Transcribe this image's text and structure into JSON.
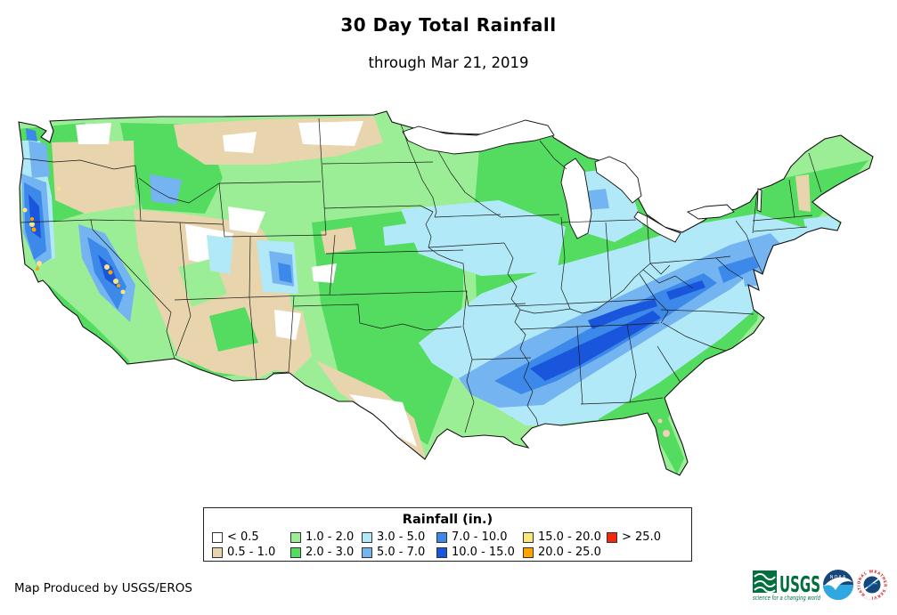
{
  "header": {
    "title": "30 Day Total Rainfall",
    "subtitle": "through Mar 21, 2019"
  },
  "legend": {
    "title": "Rainfall (in.)",
    "items": [
      {
        "label": "< 0.5",
        "color": "#FFFFFF"
      },
      {
        "label": "0.5 - 1.0",
        "color": "#E8D4AD"
      },
      {
        "label": "1.0 - 2.0",
        "color": "#9CEE96"
      },
      {
        "label": "2.0 - 3.0",
        "color": "#53DC5F"
      },
      {
        "label": "3.0 - 5.0",
        "color": "#B2E9F8"
      },
      {
        "label": "5.0 - 7.0",
        "color": "#74B4F1"
      },
      {
        "label": "7.0 - 10.0",
        "color": "#3C89EA"
      },
      {
        "label": "10.0 - 15.0",
        "color": "#1A56DC"
      },
      {
        "label": "15.0 - 20.0",
        "color": "#F9E77D"
      },
      {
        "label": "20.0 - 25.0",
        "color": "#FFA300"
      },
      {
        "label": "> 25.0",
        "color": "#F3280D"
      }
    ]
  },
  "footer": {
    "attribution": "Map Produced by USGS/EROS"
  },
  "logos": {
    "usgs": {
      "text": "USGS",
      "tagline": "science for a changing world",
      "color": "#00703C"
    },
    "noaa": {
      "text": "NOAA",
      "navy": "#16467B",
      "light_blue": "#2FA8E1"
    },
    "nws": {
      "ring_text": "NATIONAL WEATHER SERVICE",
      "text_color": "#D22630",
      "navy": "#16467B"
    }
  }
}
